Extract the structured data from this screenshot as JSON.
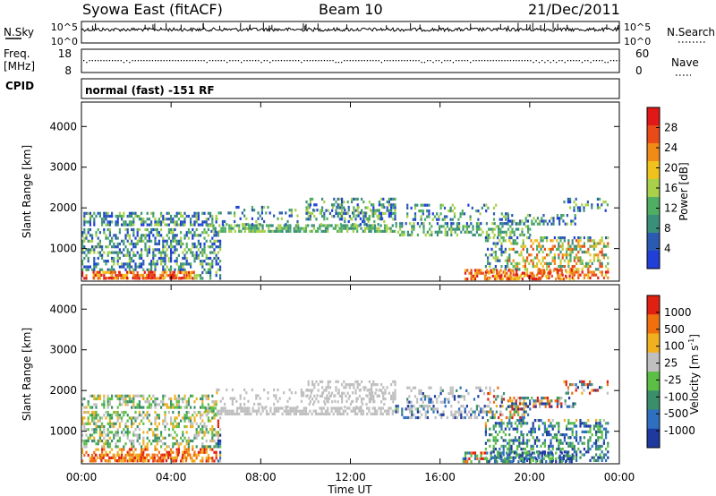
{
  "header": {
    "station": "Syowa East (fitACF)",
    "beam": "Beam 10",
    "date": "21/Dec/2011"
  },
  "panels": {
    "nsky_label": "N.Sky",
    "nsky_ticks": [
      "10^5",
      "10^0"
    ],
    "nsearch_label": "N.Search",
    "nsearch_ticks": [
      "10^5",
      "10^0"
    ],
    "freq_label": "Freq.",
    "freq_unit": "[MHz]",
    "freq_ticks": [
      "18",
      "8"
    ],
    "nave_label": "Nave",
    "nave_ticks": [
      "60",
      "0"
    ],
    "cpid_label": "CPID",
    "cpid_text": "normal (fast) -151 RF"
  },
  "colors": {
    "power_scale": [
      "#1f3fd6",
      "#2b5bb0",
      "#3a8f7a",
      "#4fae62",
      "#a8d04a",
      "#f0c21e",
      "#f08a18",
      "#e84a18",
      "#e01818"
    ],
    "velocity_scale": [
      "#1e3a9e",
      "#2f6fbf",
      "#3a8f6a",
      "#5cbf45",
      "#bfbfbf",
      "#f0b020",
      "#f07010",
      "#e02010"
    ]
  },
  "chart_data": [
    {
      "type": "heatmap",
      "parameter": "power",
      "ylabel": "Slant Range [km]",
      "yticks": [
        1000,
        2000,
        3000,
        4000
      ],
      "ylim": [
        200,
        4600
      ],
      "colorbar_label": "Power [dB]",
      "colorbar_ticks": [
        "28",
        "24",
        "20",
        "16",
        "12",
        "8",
        "4"
      ],
      "colorbar_range": [
        0,
        32
      ]
    },
    {
      "type": "heatmap",
      "parameter": "velocity",
      "ylabel": "Slant Range [km]",
      "yticks": [
        1000,
        2000,
        3000,
        4000
      ],
      "ylim": [
        200,
        4600
      ],
      "colorbar_label": "Velocity [m s^-1]",
      "colorbar_ticks": [
        "1000",
        "500",
        "100",
        "25",
        "-25",
        "-100",
        "-500",
        "-1000"
      ]
    }
  ],
  "xaxis": {
    "label": "Time UT",
    "ticks": [
      "00:00",
      "04:00",
      "08:00",
      "12:00",
      "16:00",
      "20:00",
      "00:00"
    ]
  }
}
